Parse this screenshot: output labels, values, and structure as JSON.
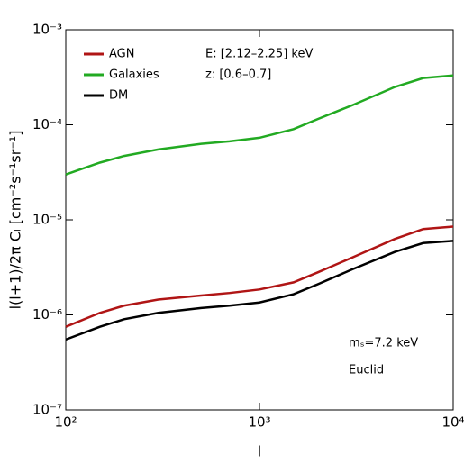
{
  "chart_data": {
    "type": "line",
    "x_label": "l",
    "y_label": "l(l+1)/2π Cₗ  [cm⁻²s⁻¹sr⁻¹]",
    "annotations": [
      "E:  [2.12–2.25] keV",
      "z:  [0.6–0.7]",
      "mₛ=7.2 keV",
      "Euclid"
    ],
    "x": [
      100,
      150,
      200,
      300,
      500,
      700,
      1000,
      1500,
      2000,
      3000,
      5000,
      7000,
      10000
    ],
    "series": [
      {
        "name": "AGN",
        "color": "#b01515",
        "values": [
          7.5e-07,
          1.05e-06,
          1.25e-06,
          1.45e-06,
          1.6e-06,
          1.7e-06,
          1.85e-06,
          2.2e-06,
          2.8e-06,
          4e-06,
          6.3e-06,
          8e-06,
          8.5e-06
        ]
      },
      {
        "name": "Galaxies",
        "color": "#22aa22",
        "values": [
          3e-05,
          4e-05,
          4.7e-05,
          5.5e-05,
          6.3e-05,
          6.7e-05,
          7.3e-05,
          9e-05,
          0.000115,
          0.00016,
          0.00025,
          0.00031,
          0.00033
        ]
      },
      {
        "name": "DM",
        "color": "#000000",
        "values": [
          5.5e-07,
          7.5e-07,
          9e-07,
          1.05e-06,
          1.18e-06,
          1.25e-06,
          1.35e-06,
          1.65e-06,
          2.1e-06,
          3e-06,
          4.6e-06,
          5.7e-06,
          6e-06
        ]
      }
    ],
    "xscale": "log",
    "yscale": "log",
    "xlim": [
      100,
      10000
    ],
    "ylim": [
      1e-07,
      0.001
    ],
    "xticks": [
      {
        "value": 100,
        "label": "10²"
      },
      {
        "value": 1000,
        "label": "10³"
      },
      {
        "value": 10000,
        "label": "10⁴"
      }
    ],
    "yticks": [
      {
        "value": 1e-07,
        "label": "10⁻⁷"
      },
      {
        "value": 1e-06,
        "label": "10⁻⁶"
      },
      {
        "value": 1e-05,
        "label": "10⁻⁵"
      },
      {
        "value": 0.0001,
        "label": "10⁻⁴"
      },
      {
        "value": 0.001,
        "label": "10⁻³"
      }
    ],
    "legend": "upper left"
  }
}
